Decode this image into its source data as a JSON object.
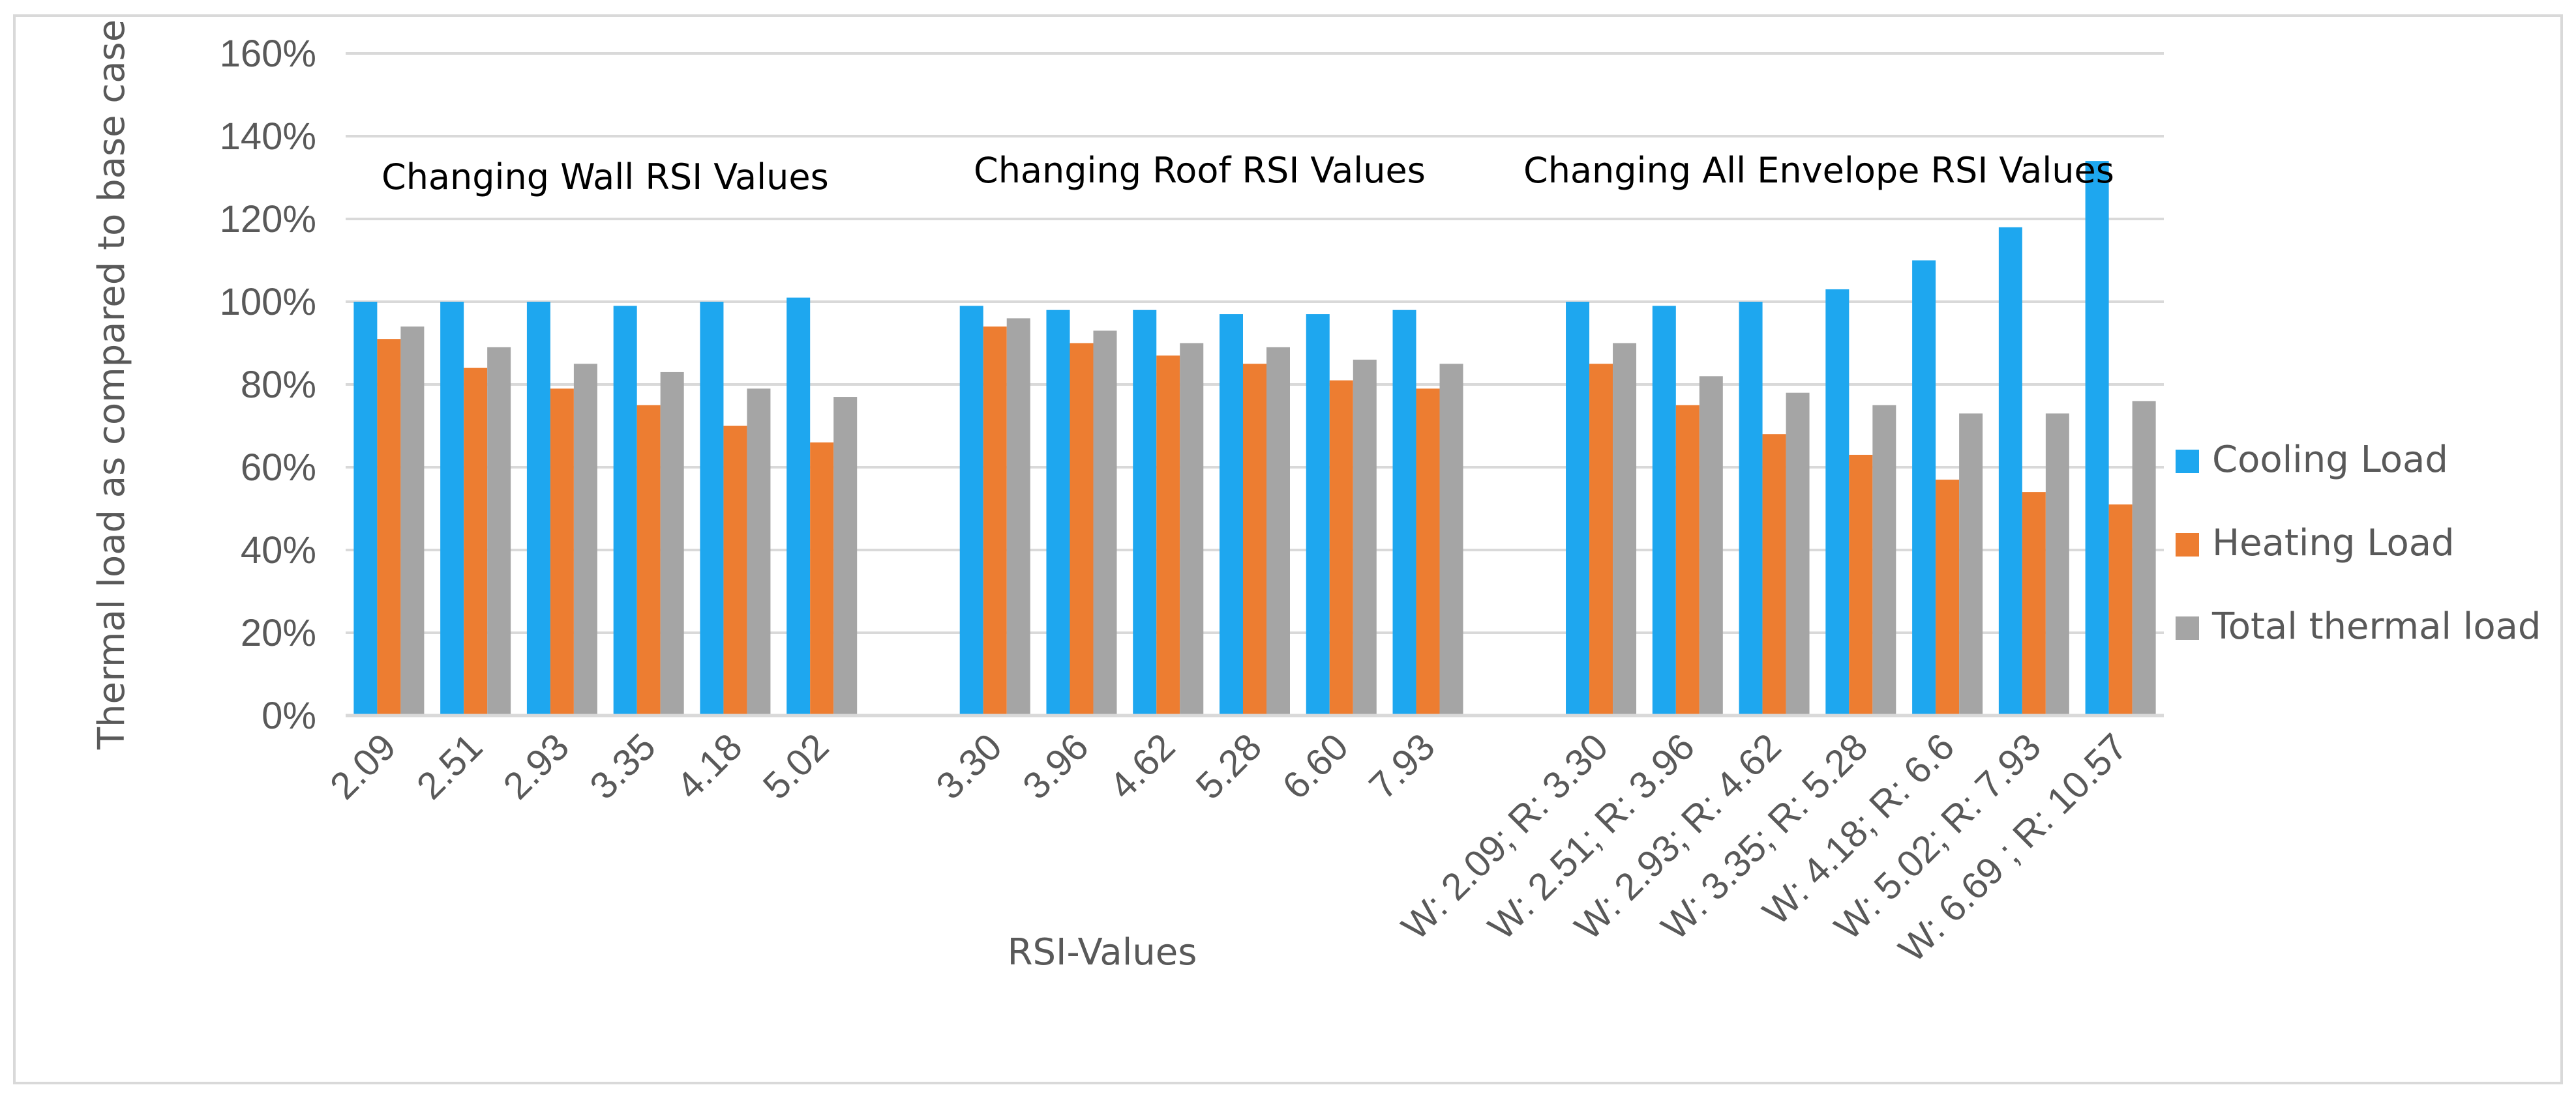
{
  "chart_data": {
    "type": "bar",
    "title": "",
    "xlabel": "RSI-Values",
    "ylabel": "Thermal load as compared to base case",
    "ylim": [
      0,
      160
    ],
    "y_ticks": [
      "0%",
      "20%",
      "40%",
      "60%",
      "80%",
      "100%",
      "120%",
      "140%",
      "160%"
    ],
    "grid": true,
    "legend_position": "right",
    "colors": {
      "cooling": "#1ea7ef",
      "heating": "#ed7d31",
      "total": "#a5a5a5",
      "grid": "#d9d9d9"
    },
    "groups": [
      {
        "annotation": "Changing Wall RSI Values",
        "categories": [
          "2.09",
          "2.51",
          "2.93",
          "3.35",
          "4.18",
          "5.02"
        ]
      },
      {
        "annotation": "Changing Roof RSI Values",
        "categories": [
          "3.30",
          "3.96",
          "4.62",
          "5.28",
          "6.60",
          "7.93"
        ]
      },
      {
        "annotation": "Changing All Envelope RSI Values",
        "categories": [
          "W: 2.09; R: 3.30",
          "W: 2.51; R: 3.96",
          "W: 2.93; R: 4.62",
          "W: 3.35; R: 5.28",
          "W: 4.18; R: 6.6",
          "W: 5.02; R: 7.93",
          "W: 6.69 ; R: 10.57"
        ]
      }
    ],
    "series": [
      {
        "name": "Cooling Load",
        "color_key": "cooling",
        "values": [
          [
            100,
            100,
            100,
            99,
            100,
            101
          ],
          [
            99,
            98,
            98,
            97,
            97,
            98
          ],
          [
            100,
            99,
            100,
            103,
            110,
            118,
            134
          ]
        ]
      },
      {
        "name": "Heating Load",
        "color_key": "heating",
        "values": [
          [
            91,
            84,
            79,
            75,
            70,
            66
          ],
          [
            94,
            90,
            87,
            85,
            81,
            79
          ],
          [
            85,
            75,
            68,
            63,
            57,
            54,
            51
          ]
        ]
      },
      {
        "name": "Total thermal load",
        "color_key": "total",
        "values": [
          [
            94,
            89,
            85,
            83,
            79,
            77
          ],
          [
            96,
            93,
            90,
            89,
            86,
            85
          ],
          [
            90,
            82,
            78,
            75,
            73,
            73,
            76
          ]
        ]
      }
    ]
  }
}
